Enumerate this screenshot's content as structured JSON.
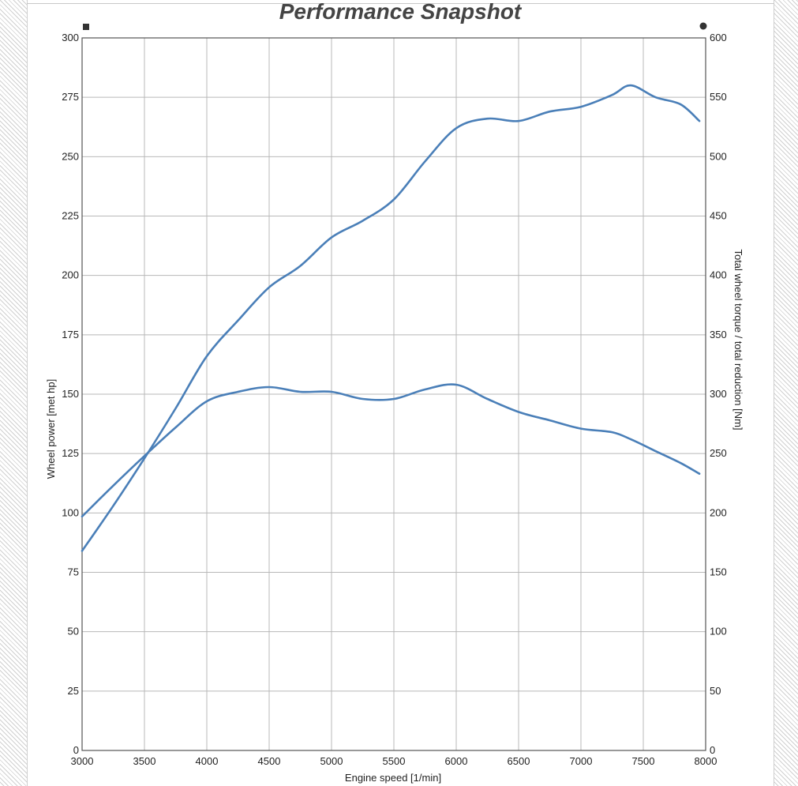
{
  "chart_data": {
    "type": "line",
    "title": "Performance Snapshot",
    "xlabel": "Engine speed [1/min]",
    "ylabel": "Wheel power [met hp]",
    "y2label": "Total wheel torque / total reduction [Nm]",
    "xlim": [
      3000,
      8000
    ],
    "ylim": [
      0,
      300
    ],
    "y2lim": [
      0,
      600
    ],
    "x_ticks": [
      3000,
      3500,
      4000,
      4500,
      5000,
      5500,
      6000,
      6500,
      7000,
      7500,
      8000
    ],
    "y_ticks": [
      0,
      25,
      50,
      75,
      100,
      125,
      150,
      175,
      200,
      225,
      250,
      275,
      300
    ],
    "y2_ticks": [
      0,
      50,
      100,
      150,
      200,
      250,
      300,
      350,
      400,
      450,
      500,
      550,
      600
    ],
    "grid": true,
    "legend_markers": {
      "left": "square",
      "right": "circle"
    },
    "series": [
      {
        "name": "Wheel power",
        "axis": "left",
        "color": "#4a7fb8",
        "x": [
          3000,
          3250,
          3500,
          3750,
          4000,
          4250,
          4500,
          4750,
          5000,
          5250,
          5500,
          5750,
          6000,
          6250,
          6500,
          6750,
          7000,
          7250,
          7400,
          7600,
          7800,
          7950
        ],
        "y": [
          84,
          103,
          123,
          144,
          166,
          181,
          195,
          204,
          216,
          223,
          232,
          248,
          262,
          266,
          265,
          269,
          271,
          276,
          280,
          275,
          272,
          265
        ]
      },
      {
        "name": "Total wheel torque / total reduction",
        "axis": "right",
        "color": "#4a7fb8",
        "x": [
          3000,
          3250,
          3500,
          3750,
          4000,
          4250,
          4500,
          4750,
          5000,
          5250,
          5500,
          5750,
          6000,
          6250,
          6500,
          6750,
          7000,
          7250,
          7400,
          7600,
          7800,
          7950
        ],
        "y": [
          197,
          223,
          248,
          272,
          294,
          302,
          306,
          302,
          302,
          296,
          296,
          304,
          308,
          296,
          285,
          278,
          271,
          268,
          262,
          252,
          242,
          233
        ]
      }
    ]
  }
}
